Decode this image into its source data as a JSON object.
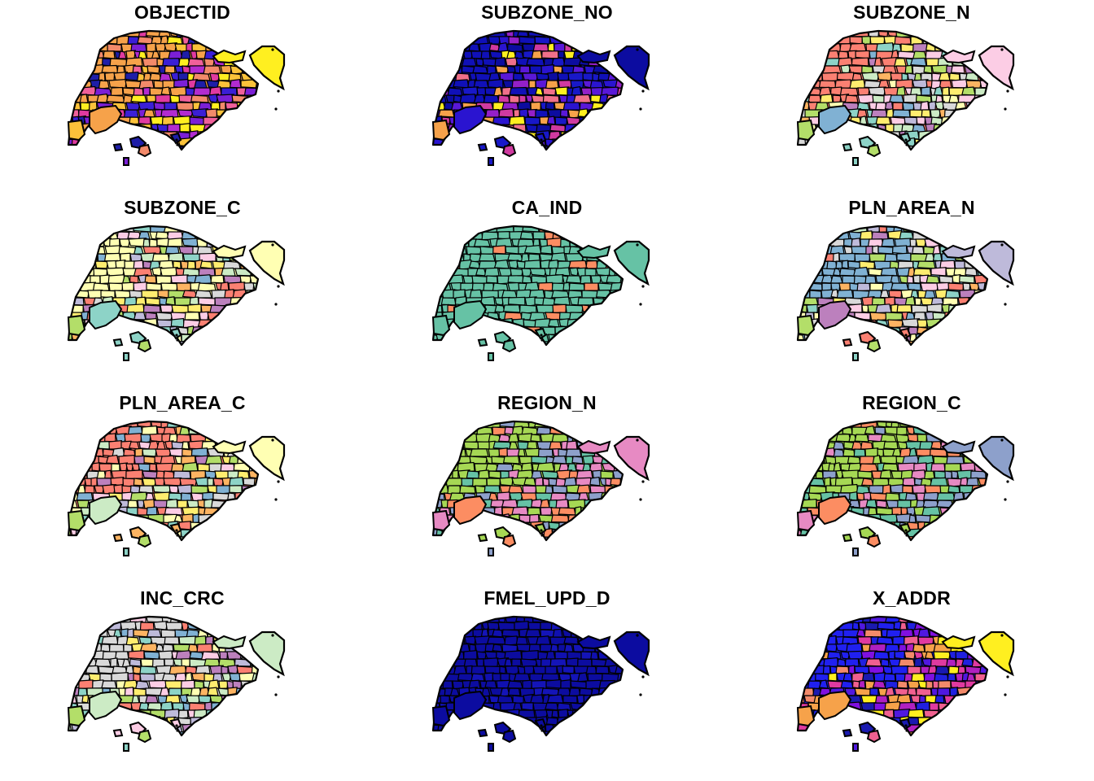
{
  "figure": {
    "layout": {
      "rows": 4,
      "cols": 3
    },
    "panels": [
      {
        "title": "OBJECTID",
        "palette": [
          "#1e1ea8",
          "#3a1fd6",
          "#7b1fd6",
          "#b22bd0",
          "#e03aa0",
          "#f0609a",
          "#f38a6a",
          "#f6a24a",
          "#fbc23a",
          "#ffef20"
        ],
        "main": "#f6a24a",
        "east": "#ffef20",
        "outline": "#f6a24a",
        "island": "#1e1ea8"
      },
      {
        "title": "SUBZONE_NO",
        "palette": [
          "#0c0ca0",
          "#1010b8",
          "#1818c8",
          "#2a14d0",
          "#5a18d8",
          "#9420c8",
          "#d03aa0",
          "#f0708a",
          "#f6a24a",
          "#ffef20"
        ],
        "main": "#1010b8",
        "east": "#0c0ca0",
        "outline": "#2a14d0",
        "island": "#1818c8"
      },
      {
        "title": "SUBZONE_N",
        "palette": [
          "#8dd3c7",
          "#ffffb3",
          "#bebada",
          "#fb8072",
          "#80b1d3",
          "#fdb462",
          "#b3de69",
          "#fccde5",
          "#d9d9d9",
          "#bc80bd",
          "#ccebc5",
          "#ffed6f"
        ],
        "main": "#fb8072",
        "east": "#fccde5",
        "outline": "#80b1d3",
        "island": "#8dd3c7"
      },
      {
        "title": "SUBZONE_C",
        "palette": [
          "#8dd3c7",
          "#ffffb3",
          "#bebada",
          "#fb8072",
          "#80b1d3",
          "#fdb462",
          "#b3de69",
          "#fccde5",
          "#d9d9d9",
          "#bc80bd",
          "#ccebc5",
          "#ffed6f"
        ],
        "main": "#ffffb3",
        "east": "#ffffb3",
        "outline": "#8dd3c7",
        "island": "#8dd3c7"
      },
      {
        "title": "CA_IND",
        "palette": [
          "#66c2a5",
          "#66c2a5",
          "#66c2a5",
          "#66c2a5",
          "#66c2a5",
          "#66c2a5",
          "#66c2a5",
          "#fc8d62"
        ],
        "main": "#66c2a5",
        "east": "#66c2a5",
        "outline": "#66c2a5",
        "island": "#66c2a5"
      },
      {
        "title": "PLN_AREA_N",
        "palette": [
          "#8dd3c7",
          "#ffffb3",
          "#bebada",
          "#fb8072",
          "#80b1d3",
          "#fdb462",
          "#b3de69",
          "#fccde5",
          "#d9d9d9",
          "#bc80bd",
          "#ccebc5",
          "#ffed6f"
        ],
        "main": "#80b1d3",
        "east": "#bebada",
        "outline": "#bc80bd",
        "island": "#fb8072"
      },
      {
        "title": "PLN_AREA_C",
        "palette": [
          "#8dd3c7",
          "#ffffb3",
          "#bebada",
          "#fb8072",
          "#80b1d3",
          "#fdb462",
          "#b3de69",
          "#fccde5",
          "#d9d9d9",
          "#bc80bd",
          "#ccebc5",
          "#ffed6f"
        ],
        "main": "#fb8072",
        "east": "#ffffb3",
        "outline": "#ccebc5",
        "island": "#fdb462"
      },
      {
        "title": "REGION_N",
        "palette": [
          "#66c2a5",
          "#fc8d62",
          "#8da0cb",
          "#e78ac3",
          "#a6d854"
        ],
        "main": "#a6d854",
        "east": "#e78ac3",
        "outline": "#fc8d62",
        "island": "#a6d854"
      },
      {
        "title": "REGION_C",
        "palette": [
          "#66c2a5",
          "#fc8d62",
          "#8da0cb",
          "#e78ac3",
          "#a6d854"
        ],
        "main": "#a6d854",
        "east": "#8da0cb",
        "outline": "#fc8d62",
        "island": "#a6d854"
      },
      {
        "title": "INC_CRC",
        "palette": [
          "#8dd3c7",
          "#ffffb3",
          "#bebada",
          "#fb8072",
          "#80b1d3",
          "#fdb462",
          "#b3de69",
          "#fccde5",
          "#d9d9d9",
          "#bc80bd",
          "#ccebc5",
          "#ffed6f"
        ],
        "main": "#d9d9d9",
        "east": "#ccebc5",
        "outline": "#ccebc5",
        "island": "#fccde5"
      },
      {
        "title": "FMEL_UPD_D",
        "palette": [
          "#0c0ca0",
          "#0c0ca0",
          "#0c0ca0",
          "#1010b0",
          "#0c0ca0",
          "#1414b8"
        ],
        "main": "#0c0ca0",
        "east": "#0c0ca0",
        "outline": "#0c0ca0",
        "island": "#0c0ca0"
      },
      {
        "title": "X_ADDR",
        "palette": [
          "#1a1ab0",
          "#2020e0",
          "#5018e0",
          "#8010e0",
          "#b020c0",
          "#e03aa0",
          "#f06090",
          "#f38a6a",
          "#f6a24a",
          "#ffef20"
        ],
        "main": "#2020f0",
        "east": "#ffef20",
        "outline": "#f6a24a",
        "island": "#1a1ab0"
      }
    ]
  }
}
